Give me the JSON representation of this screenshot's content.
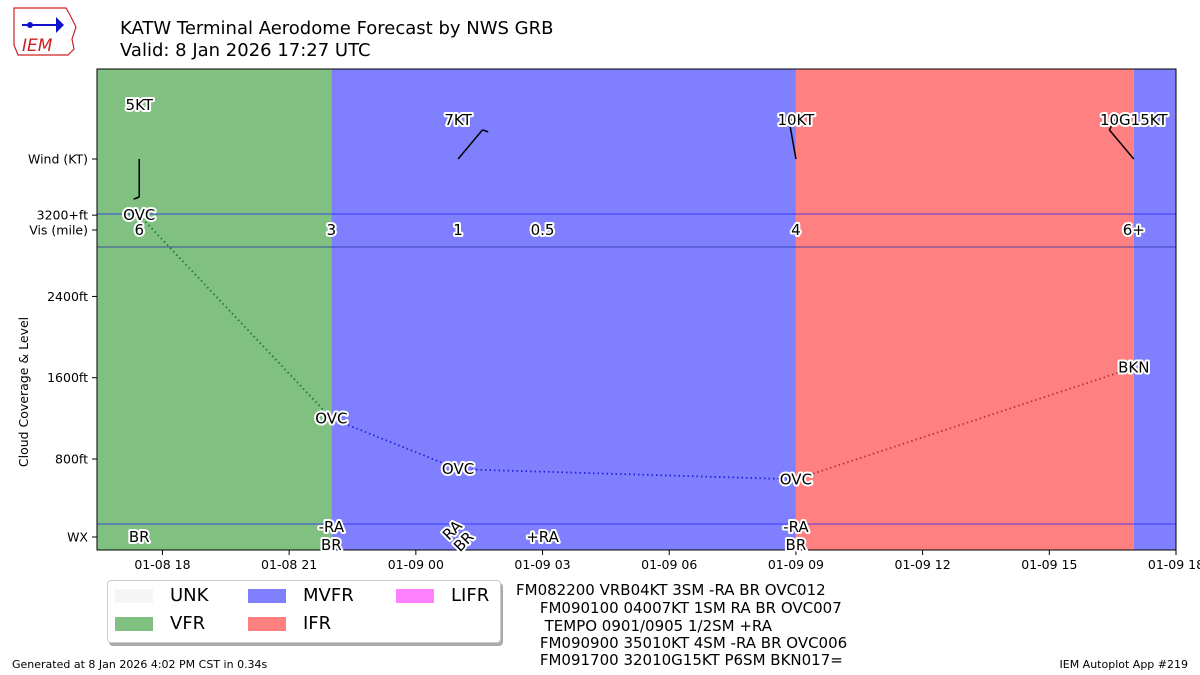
{
  "header": {
    "title": "KATW Terminal Aerodome Forecast by NWS GRB",
    "valid": "Valid: 8 Jan 2026 17:27 UTC",
    "logo_text": "IEM"
  },
  "footer": {
    "generated": "Generated at 8 Jan 2026 4:02 PM CST in 0.34s",
    "app": "IEM Autoplot App #219"
  },
  "taf_text": [
    "FM082200 VRB04KT 3SM -RA BR OVC012",
    "     FM090100 04007KT 1SM RA BR OVC007",
    "      TEMPO 0901/0905 1/2SM +RA",
    "     FM090900 35010KT 4SM -RA BR OVC006",
    "     FM091700 32010G15KT P6SM BKN017="
  ],
  "legend": [
    {
      "label": "UNK",
      "color": "#f5f5f5"
    },
    {
      "label": "VFR",
      "color": "#80c080"
    },
    {
      "label": "MVFR",
      "color": "#8080ff"
    },
    {
      "label": "IFR",
      "color": "#ff8080"
    },
    {
      "label": "LIFR",
      "color": "#ff80ff"
    }
  ],
  "chart_data": {
    "type": "timeline",
    "xlim": [
      "2026-01-08 16:27",
      "2026-01-09 18:00"
    ],
    "xticks": [
      {
        "t": "2026-01-08 18:00",
        "label": "01-08 18"
      },
      {
        "t": "2026-01-08 21:00",
        "label": "01-08 21"
      },
      {
        "t": "2026-01-09 00:00",
        "label": "01-09 00"
      },
      {
        "t": "2026-01-09 03:00",
        "label": "01-09 03"
      },
      {
        "t": "2026-01-09 06:00",
        "label": "01-09 06"
      },
      {
        "t": "2026-01-09 09:00",
        "label": "01-09 09"
      },
      {
        "t": "2026-01-09 12:00",
        "label": "01-09 12"
      },
      {
        "t": "2026-01-09 15:00",
        "label": "01-09 15"
      },
      {
        "t": "2026-01-09 18:00",
        "label": "01-09 18"
      }
    ],
    "ylabels": {
      "wind": "Wind (KT)",
      "vis": "Vis (mile)",
      "cloud": "Cloud Coverage & Level",
      "wx": "WX"
    },
    "cloud_yticks": [
      {
        "v": 3200,
        "label": "3200+ft"
      },
      {
        "v": 2400,
        "label": "2400ft"
      },
      {
        "v": 1600,
        "label": "1600ft"
      },
      {
        "v": 800,
        "label": "800ft"
      }
    ],
    "categories": [
      {
        "start": "2026-01-08 16:27",
        "end": "2026-01-08 22:00",
        "cat": "VFR",
        "color": "#80c080"
      },
      {
        "start": "2026-01-08 22:00",
        "end": "2026-01-09 09:00",
        "cat": "MVFR",
        "color": "#8080ff"
      },
      {
        "start": "2026-01-09 09:00",
        "end": "2026-01-09 17:00",
        "cat": "IFR",
        "color": "#ff8080"
      },
      {
        "start": "2026-01-09 17:00",
        "end": "2026-01-09 18:00",
        "cat": "MVFR",
        "color": "#8080ff"
      }
    ],
    "wind": [
      {
        "t": "2026-01-08 17:27",
        "label": "5KT",
        "dir": 180,
        "speed": 5
      },
      {
        "t": "2026-01-09 01:00",
        "label": "7KT",
        "dir": 40,
        "speed": 7
      },
      {
        "t": "2026-01-09 09:00",
        "label": "10KT",
        "dir": 350,
        "speed": 10
      },
      {
        "t": "2026-01-09 17:00",
        "label": "10G15KT",
        "dir": 320,
        "speed": 10
      }
    ],
    "vis": [
      {
        "t": "2026-01-08 17:27",
        "label": "6"
      },
      {
        "t": "2026-01-08 22:00",
        "label": "3"
      },
      {
        "t": "2026-01-09 01:00",
        "label": "1"
      },
      {
        "t": "2026-01-09 03:00",
        "label": "0.5"
      },
      {
        "t": "2026-01-09 09:00",
        "label": "4"
      },
      {
        "t": "2026-01-09 17:00",
        "label": "6+"
      }
    ],
    "clouds": [
      {
        "t": "2026-01-08 17:27",
        "level": 3200,
        "cover": "OVC",
        "line_color": "#1b7a3a"
      },
      {
        "t": "2026-01-08 22:00",
        "level": 1200,
        "cover": "OVC",
        "line_color": "#2020e0"
      },
      {
        "t": "2026-01-09 01:00",
        "level": 700,
        "cover": "OVC",
        "line_color": "#2020e0"
      },
      {
        "t": "2026-01-09 09:00",
        "level": 600,
        "cover": "OVC",
        "line_color": "#b03040"
      },
      {
        "t": "2026-01-09 17:00",
        "level": 1700,
        "cover": "BKN"
      }
    ],
    "wx": [
      {
        "t": "2026-01-08 17:27",
        "lines": [
          "BR"
        ],
        "rotate": 0
      },
      {
        "t": "2026-01-08 22:00",
        "lines": [
          "-RA",
          "BR"
        ],
        "rotate": 0
      },
      {
        "t": "2026-01-09 01:00",
        "lines": [
          "RA",
          "BR"
        ],
        "rotate": -45
      },
      {
        "t": "2026-01-09 03:00",
        "lines": [
          "+RA"
        ],
        "rotate": 0
      },
      {
        "t": "2026-01-09 09:00",
        "lines": [
          "-RA",
          "BR"
        ],
        "rotate": 0
      }
    ]
  }
}
